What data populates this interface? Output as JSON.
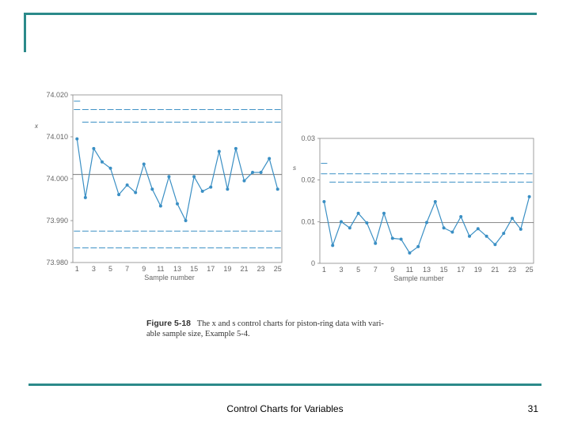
{
  "slide": {
    "footer_title": "Control Charts for Variables",
    "page_number": "31"
  },
  "figure": {
    "label": "Figure 5-18",
    "caption_line1": "The x and s control charts for piston-ring data with vari-",
    "caption_line2": "able sample size, Example 5-4."
  },
  "colors": {
    "accent": "#2b8a8a",
    "series": "#3a8fc4"
  },
  "chart_data": [
    {
      "type": "line",
      "title": "",
      "ylabel": "x",
      "xlabel": "Sample number",
      "x": [
        1,
        2,
        3,
        4,
        5,
        6,
        7,
        8,
        9,
        10,
        11,
        12,
        13,
        14,
        15,
        16,
        17,
        18,
        19,
        20,
        21,
        22,
        23,
        24,
        25
      ],
      "values": [
        74.0095,
        73.9955,
        74.0072,
        74.004,
        74.0025,
        73.9962,
        73.9985,
        73.9967,
        74.0035,
        73.9975,
        73.9935,
        74.0005,
        73.994,
        73.99,
        74.0005,
        73.997,
        73.998,
        74.0065,
        73.9975,
        74.0072,
        73.9995,
        74.0015,
        74.0015,
        74.0048,
        73.9975
      ],
      "ylim": [
        73.98,
        74.02
      ],
      "yticks": [
        "74.020",
        "74.010",
        "74.000",
        "73.990",
        "73.980"
      ],
      "xticks": [
        "1",
        "3",
        "5",
        "7",
        "9",
        "11",
        "13",
        "15",
        "17",
        "19",
        "21",
        "23",
        "25"
      ],
      "center_line": 74.001
    },
    {
      "type": "line",
      "title": "",
      "ylabel": "s",
      "xlabel": "Sample number",
      "x": [
        1,
        2,
        3,
        4,
        5,
        6,
        7,
        8,
        9,
        10,
        11,
        12,
        13,
        14,
        15,
        16,
        17,
        18,
        19,
        20,
        21,
        22,
        23,
        24,
        25
      ],
      "values": [
        0.0148,
        0.0043,
        0.01,
        0.0085,
        0.012,
        0.0097,
        0.0048,
        0.012,
        0.006,
        0.0058,
        0.0025,
        0.004,
        0.0098,
        0.0148,
        0.0085,
        0.0075,
        0.0112,
        0.0065,
        0.0083,
        0.0065,
        0.0045,
        0.0072,
        0.0108,
        0.0082,
        0.016
      ],
      "ylim": [
        0,
        0.03
      ],
      "yticks": [
        "0.03",
        "0.02",
        "0.01",
        "0"
      ],
      "xticks": [
        "1",
        "3",
        "5",
        "7",
        "9",
        "11",
        "13",
        "15",
        "17",
        "19",
        "21",
        "23",
        "25"
      ],
      "center_line": 0.0098
    }
  ]
}
